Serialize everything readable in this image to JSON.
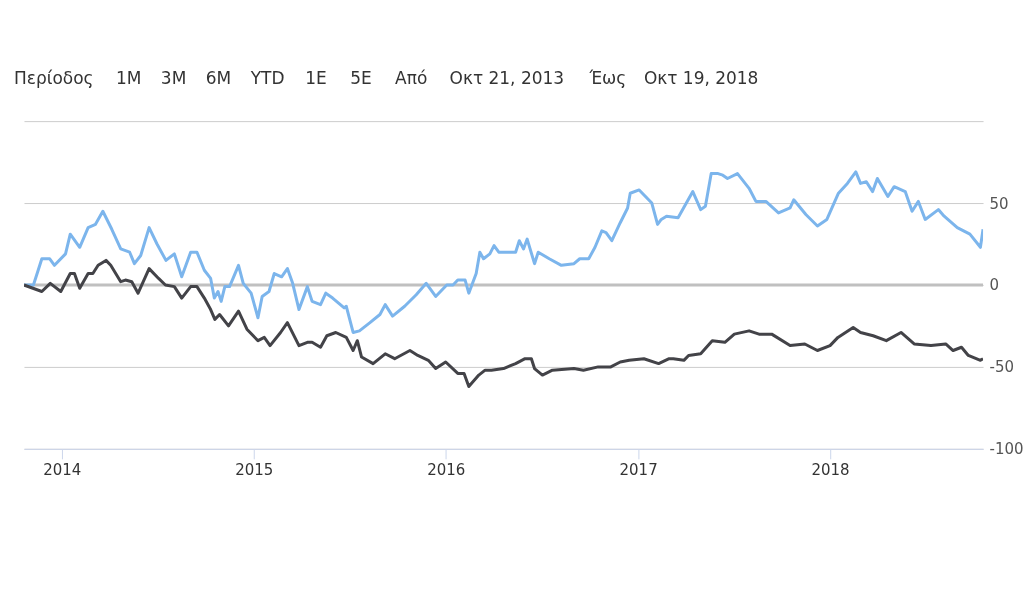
{
  "chart_data": {
    "type": "line",
    "annotations": [
      "Περίοδος",
      "1M",
      "3M",
      "6M",
      "YTD",
      "1E",
      "5E",
      "Από",
      "Οκτ 21, 2013",
      "Έως",
      "Οκτ 19, 2018"
    ],
    "xlim": [
      "2013-10-21",
      "2018-10-19"
    ],
    "xticks": [
      {
        "value": "2014-01-01",
        "label": "2014"
      },
      {
        "value": "2015-01-01",
        "label": "2015"
      },
      {
        "value": "2016-01-01",
        "label": "2016"
      },
      {
        "value": "2017-01-01",
        "label": "2017"
      },
      {
        "value": "2018-01-01",
        "label": "2018"
      }
    ],
    "ylim": [
      -100,
      100
    ],
    "yticks": [
      -100,
      -50,
      0,
      50,
      {
        "value": 100,
        "label": null
      }
    ],
    "grid": "y",
    "line_style": "solid",
    "marker": "none",
    "ref_lines": [
      {
        "axis": "y",
        "value": 0,
        "label": null,
        "color": "#c0c0c0"
      }
    ],
    "series": [
      {
        "color": "#7cb5ec",
        "x": [
          "2013-10-21",
          "2013-11-08",
          "2013-11-24",
          "2013-12-09",
          "2013-12-18",
          "2014-01-08",
          "2014-01-17",
          "2014-02-04",
          "2014-02-20",
          "2014-03-06",
          "2014-03-20",
          "2014-04-06",
          "2014-04-23",
          "2014-05-10",
          "2014-05-19",
          "2014-05-31",
          "2014-06-16",
          "2014-07-01",
          "2014-07-18",
          "2014-08-03",
          "2014-08-17",
          "2014-09-03",
          "2014-09-15",
          "2014-09-29",
          "2014-10-11",
          "2014-10-18",
          "2014-10-25",
          "2014-10-31",
          "2014-11-07",
          "2014-11-16",
          "2014-12-03",
          "2014-12-12",
          "2014-12-27",
          "2015-01-09",
          "2015-01-17",
          "2015-01-30",
          "2015-02-09",
          "2015-02-23",
          "2015-03-06",
          "2015-03-16",
          "2015-03-28",
          "2015-04-13",
          "2015-04-22",
          "2015-05-08",
          "2015-05-18",
          "2015-05-31",
          "2015-06-22",
          "2015-06-26",
          "2015-07-09",
          "2015-07-21",
          "2015-08-10",
          "2015-08-29",
          "2015-09-08",
          "2015-09-22",
          "2015-10-15",
          "2015-11-06",
          "2015-11-25",
          "2015-12-13",
          "2016-01-03",
          "2016-01-15",
          "2016-01-24",
          "2016-02-07",
          "2016-02-14",
          "2016-02-28",
          "2016-03-06",
          "2016-03-13",
          "2016-03-25",
          "2016-04-02",
          "2016-04-11",
          "2016-05-13",
          "2016-05-20",
          "2016-05-28",
          "2016-06-04",
          "2016-06-18",
          "2016-06-25",
          "2016-07-16",
          "2016-08-08",
          "2016-09-01",
          "2016-09-12",
          "2016-09-29",
          "2016-10-11",
          "2016-10-24",
          "2016-11-01",
          "2016-11-12",
          "2016-11-28",
          "2016-12-12",
          "2016-12-17",
          "2017-01-03",
          "2017-01-27",
          "2017-02-07",
          "2017-02-14",
          "2017-02-24",
          "2017-03-18",
          "2017-04-15",
          "2017-04-30",
          "2017-05-09",
          "2017-05-20",
          "2017-06-02",
          "2017-06-11",
          "2017-06-20",
          "2017-07-09",
          "2017-07-31",
          "2017-08-13",
          "2017-09-01",
          "2017-09-25",
          "2017-10-17",
          "2017-10-24",
          "2017-11-16",
          "2017-12-08",
          "2017-12-26",
          "2018-01-17",
          "2018-02-03",
          "2018-02-19",
          "2018-02-28",
          "2018-03-11",
          "2018-03-23",
          "2018-04-01",
          "2018-04-21",
          "2018-05-03",
          "2018-05-24",
          "2018-06-06",
          "2018-06-18",
          "2018-07-01",
          "2018-07-26",
          "2018-08-06",
          "2018-08-31",
          "2018-09-24",
          "2018-10-14",
          "2018-10-19"
        ],
        "values": [
          0,
          0,
          16,
          16,
          12,
          19,
          31,
          23,
          35,
          37,
          45,
          34,
          22,
          20,
          13,
          18,
          35,
          25,
          15,
          19,
          5,
          20,
          20,
          9,
          4,
          -8,
          -4,
          -10,
          -1,
          -1,
          12,
          1,
          -5,
          -20,
          -7,
          -4,
          7,
          5,
          10,
          1,
          -15,
          -1,
          -10,
          -12,
          -5,
          -8,
          -14,
          -13,
          -29,
          -28,
          -23,
          -18,
          -12,
          -19,
          -13,
          -6,
          1,
          -7,
          0,
          0,
          3,
          3,
          -5,
          7,
          20,
          16,
          19,
          24,
          20,
          20,
          27,
          22,
          28,
          13,
          20,
          16,
          12,
          13,
          16,
          16,
          23,
          33,
          32,
          27,
          38,
          47,
          56,
          58,
          50,
          37,
          40,
          42,
          41,
          57,
          46,
          48,
          68,
          68,
          67,
          65,
          68,
          59,
          51,
          51,
          44,
          47,
          52,
          43,
          36,
          40,
          56,
          62,
          69,
          62,
          63,
          57,
          65,
          54,
          60,
          57,
          45,
          51,
          40,
          46,
          42,
          35,
          31,
          23,
          34
        ]
      },
      {
        "color": "#434348",
        "x": [
          "2013-10-21",
          "2013-11-24",
          "2013-12-10",
          "2013-12-30",
          "2014-01-17",
          "2014-01-25",
          "2014-02-04",
          "2014-02-20",
          "2014-03-01",
          "2014-03-11",
          "2014-03-26",
          "2014-04-04",
          "2014-04-23",
          "2014-05-02",
          "2014-05-14",
          "2014-05-26",
          "2014-06-16",
          "2014-07-04",
          "2014-07-17",
          "2014-08-03",
          "2014-08-17",
          "2014-09-03",
          "2014-09-15",
          "2014-09-29",
          "2014-10-11",
          "2014-10-19",
          "2014-10-28",
          "2014-11-14",
          "2014-12-03",
          "2014-12-19",
          "2015-01-09",
          "2015-01-21",
          "2015-02-01",
          "2015-02-21",
          "2015-03-06",
          "2015-03-28",
          "2015-04-13",
          "2015-04-22",
          "2015-05-08",
          "2015-05-20",
          "2015-06-06",
          "2015-06-26",
          "2015-07-09",
          "2015-07-17",
          "2015-07-25",
          "2015-08-16",
          "2015-09-08",
          "2015-09-26",
          "2015-10-25",
          "2015-11-09",
          "2015-11-29",
          "2015-12-13",
          "2016-01-01",
          "2016-01-24",
          "2016-02-05",
          "2016-02-14",
          "2016-03-04",
          "2016-03-16",
          "2016-03-28",
          "2016-04-20",
          "2016-05-13",
          "2016-05-31",
          "2016-06-12",
          "2016-06-18",
          "2016-07-03",
          "2016-07-22",
          "2016-09-01",
          "2016-09-19",
          "2016-10-17",
          "2016-11-10",
          "2016-11-28",
          "2016-12-15",
          "2017-01-12",
          "2017-02-09",
          "2017-03-01",
          "2017-03-09",
          "2017-03-29",
          "2017-04-07",
          "2017-04-30",
          "2017-05-22",
          "2017-06-15",
          "2017-07-03",
          "2017-07-31",
          "2017-08-19",
          "2017-09-12",
          "2017-10-17",
          "2017-11-14",
          "2017-12-08",
          "2018-01-01",
          "2018-01-16",
          "2018-02-14",
          "2018-02-28",
          "2018-03-24",
          "2018-04-18",
          "2018-05-16",
          "2018-06-10",
          "2018-07-12",
          "2018-08-09",
          "2018-08-23",
          "2018-09-08",
          "2018-09-21",
          "2018-10-14",
          "2018-10-19"
        ],
        "values": [
          0,
          -4,
          1,
          -4,
          7,
          7,
          -2,
          7,
          7,
          12,
          15,
          12,
          2,
          3,
          2,
          -5,
          10,
          4,
          0,
          -1,
          -8,
          -1,
          -1,
          -8,
          -15,
          -21,
          -18,
          -25,
          -16,
          -27,
          -34,
          -32,
          -37,
          -29,
          -23,
          -37,
          -35,
          -35,
          -38,
          -31,
          -29,
          -32,
          -40,
          -34,
          -44,
          -48,
          -42,
          -45,
          -40,
          -43,
          -46,
          -51,
          -47,
          -54,
          -54,
          -62,
          -55,
          -52,
          -52,
          -51,
          -48,
          -45,
          -45,
          -51,
          -55,
          -52,
          -51,
          -52,
          -50,
          -50,
          -47,
          -46,
          -45,
          -48,
          -45,
          -45,
          -46,
          -43,
          -42,
          -34,
          -35,
          -30,
          -28,
          -30,
          -30,
          -37,
          -36,
          -40,
          -37,
          -32,
          -26,
          -29,
          -31,
          -34,
          -29,
          -36,
          -37,
          -36,
          -40,
          -38,
          -43,
          -46,
          -45
        ]
      }
    ]
  }
}
